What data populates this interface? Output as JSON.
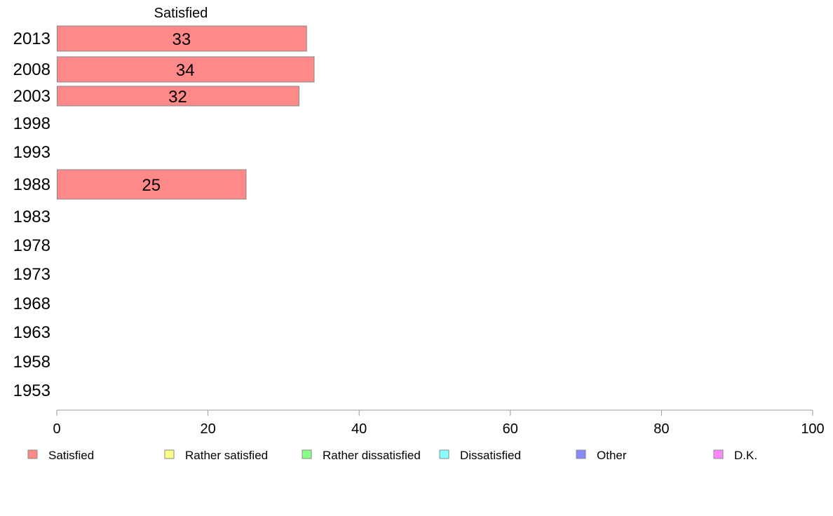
{
  "chart_data": {
    "type": "bar",
    "orientation": "horizontal",
    "stacked": true,
    "categories": [
      "2013",
      "2008",
      "2003",
      "1998",
      "1993",
      "1988",
      "1983",
      "1978",
      "1973",
      "1968",
      "1963",
      "1958",
      "1953"
    ],
    "series": [
      {
        "name": "Satisfied",
        "color": "#ff8888",
        "values": [
          33,
          34,
          32,
          null,
          null,
          25,
          null,
          null,
          null,
          null,
          null,
          null,
          null
        ]
      },
      {
        "name": "Rather satisfied",
        "color": "#ffff88",
        "values": [
          null,
          null,
          null,
          null,
          null,
          null,
          null,
          null,
          null,
          null,
          null,
          null,
          null
        ]
      },
      {
        "name": "Rather dissatisfied",
        "color": "#88ff88",
        "values": [
          null,
          null,
          null,
          null,
          null,
          null,
          null,
          null,
          null,
          null,
          null,
          null,
          null
        ]
      },
      {
        "name": "Dissatisfied",
        "color": "#88ffff",
        "values": [
          null,
          null,
          null,
          null,
          null,
          null,
          null,
          null,
          null,
          null,
          null,
          null,
          null
        ]
      },
      {
        "name": "Other",
        "color": "#8888ff",
        "values": [
          null,
          null,
          null,
          null,
          null,
          null,
          null,
          null,
          null,
          null,
          null,
          null,
          null
        ]
      },
      {
        "name": "D.K.",
        "color": "#ff88ff",
        "values": [
          null,
          null,
          null,
          null,
          null,
          null,
          null,
          null,
          null,
          null,
          null,
          null,
          null
        ]
      }
    ],
    "series_header": "Satisfied",
    "xlim": [
      0,
      100
    ],
    "xticks": [
      0,
      20,
      40,
      60,
      80,
      100
    ],
    "grid": false,
    "legend_position": "bottom"
  }
}
